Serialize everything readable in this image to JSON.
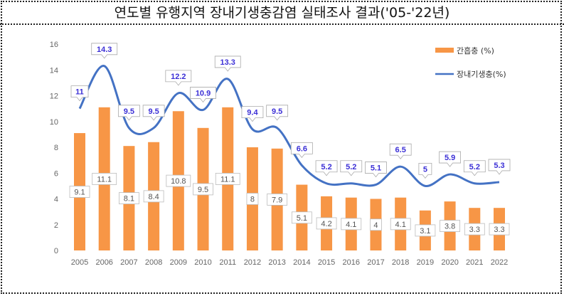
{
  "title": "연도별 유행지역 장내기생충감염 실태조사 결과('05-'22년)",
  "chart_data": {
    "type": "bar+line",
    "title": "연도별 유행지역 장내기생충감염 실태조사 결과('05-'22년)",
    "categories": [
      "2005",
      "2006",
      "2007",
      "2008",
      "2009",
      "2010",
      "2011",
      "2012",
      "2013",
      "2014",
      "2015",
      "2016",
      "2017",
      "2018",
      "2019",
      "2020",
      "2021",
      "2022"
    ],
    "series": [
      {
        "name": "간흡충 (%)",
        "type": "bar",
        "color": "#f79646",
        "values": [
          9.1,
          11.1,
          8.1,
          8.4,
          10.8,
          9.5,
          11.1,
          8,
          7.9,
          5.1,
          4.2,
          4.1,
          4,
          4.1,
          3.1,
          3.8,
          3.3,
          3.3
        ]
      },
      {
        "name": "장내기생충(%)",
        "type": "line",
        "color": "#4472c4",
        "values": [
          11,
          14.3,
          9.5,
          9.5,
          12.2,
          10.9,
          13.3,
          9.4,
          9.5,
          6.6,
          5.2,
          5.2,
          5.1,
          6.5,
          5,
          5.9,
          5.2,
          5.3
        ]
      }
    ],
    "ylim": [
      0,
      16
    ],
    "yticks": [
      0,
      2,
      4,
      6,
      8,
      10,
      12,
      14,
      16
    ],
    "grid": false,
    "legend": "top-right"
  }
}
